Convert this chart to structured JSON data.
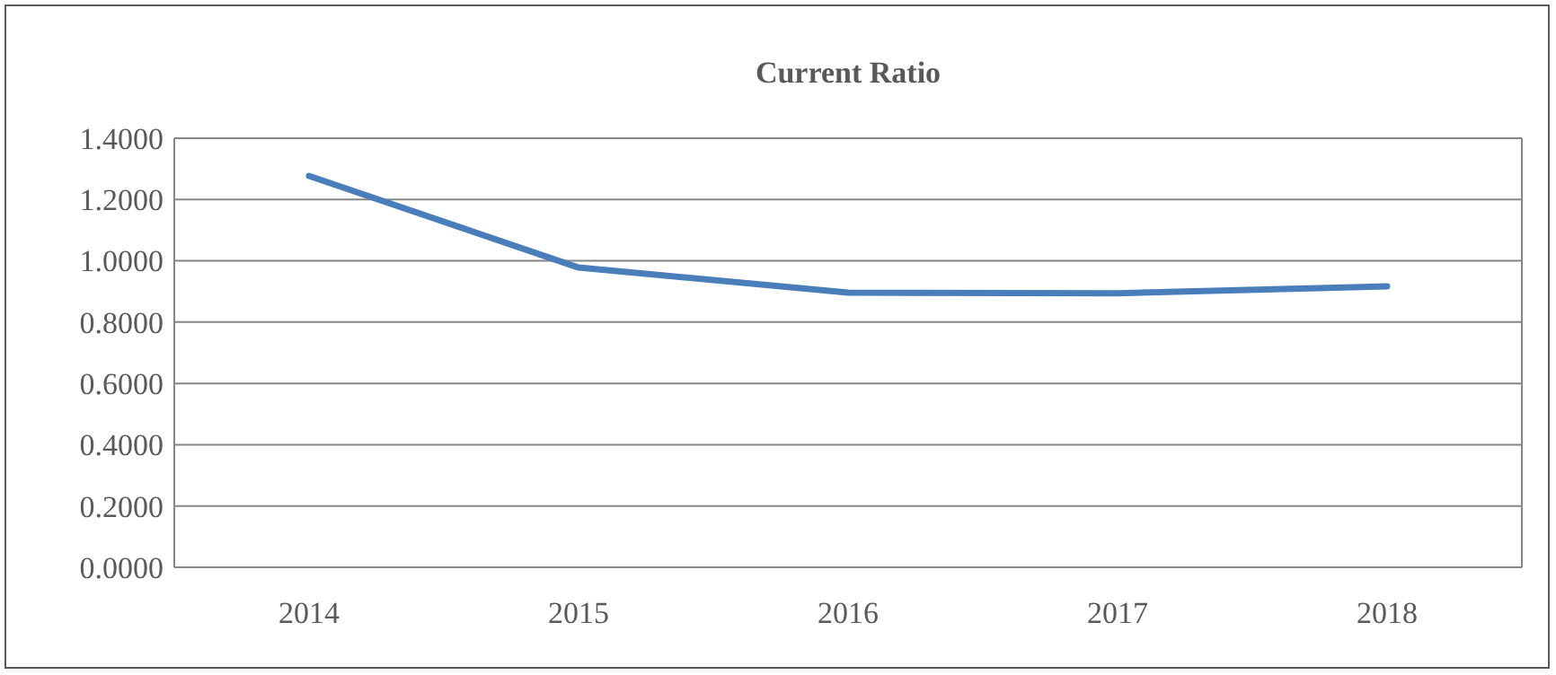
{
  "chart_data": {
    "type": "line",
    "title": "Current Ratio",
    "categories": [
      "2014",
      "2015",
      "2016",
      "2017",
      "2018"
    ],
    "series": [
      {
        "color": "#4a7ebb",
        "values": [
          1.277,
          0.978,
          0.896,
          0.894,
          0.917
        ]
      }
    ],
    "ylim": [
      0,
      1.4
    ],
    "yticks": [
      {
        "value": 0,
        "label": "0.0000"
      },
      {
        "value": 0.2,
        "label": "0.2000"
      },
      {
        "value": 0.4,
        "label": "0.4000"
      },
      {
        "value": 0.6,
        "label": "0.6000"
      },
      {
        "value": 0.8,
        "label": "0.8000"
      },
      {
        "value": 1,
        "label": "1.0000"
      },
      {
        "value": 1.2,
        "label": "1.2000"
      },
      {
        "value": 1.4,
        "label": "1.4000"
      }
    ],
    "grid": "y",
    "marker": "none",
    "line_style": "solid"
  }
}
